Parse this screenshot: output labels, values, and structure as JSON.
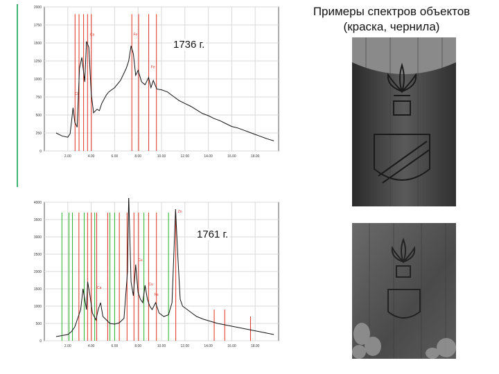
{
  "title_line1": "Примеры спектров объектов",
  "title_line2": "(краска, чернила)",
  "chart_data": [
    {
      "type": "line",
      "label": "1736 г.",
      "xlim": [
        0,
        20
      ],
      "ylim": [
        0,
        2000
      ],
      "x_tick_labels": [
        "2.00",
        "4.00",
        "6.00",
        "8.00",
        "10.00",
        "12.00",
        "14.00",
        "16.00",
        "18.00"
      ],
      "y_tick_labels": [
        "2000",
        "1750",
        "1500",
        "1250",
        "1000",
        "750",
        "500",
        "250",
        "0"
      ],
      "x": [
        1.0,
        1.5,
        2.0,
        2.2,
        2.45,
        2.6,
        2.8,
        3.0,
        3.2,
        3.45,
        3.6,
        3.8,
        4.0,
        4.2,
        4.5,
        4.7,
        4.9,
        5.1,
        5.3,
        5.5,
        6.0,
        6.5,
        7.0,
        7.2,
        7.4,
        7.6,
        7.8,
        8.0,
        8.3,
        8.6,
        8.9,
        9.1,
        9.3,
        9.6,
        10.0,
        10.5,
        11.0,
        11.5,
        12.0,
        12.5,
        13.0,
        13.5,
        14.0,
        14.5,
        15.0,
        15.5,
        16.0,
        16.5,
        17.0,
        17.5,
        18.0,
        18.5,
        19.0,
        19.6
      ],
      "y": [
        250,
        210,
        190,
        240,
        600,
        400,
        330,
        1150,
        1300,
        960,
        1520,
        1440,
        800,
        530,
        580,
        560,
        660,
        720,
        780,
        820,
        880,
        980,
        1150,
        1250,
        1460,
        1350,
        1050,
        1120,
        960,
        920,
        1020,
        880,
        980,
        860,
        850,
        820,
        760,
        700,
        660,
        620,
        570,
        520,
        490,
        450,
        420,
        380,
        340,
        320,
        290,
        260,
        230,
        200,
        170,
        140
      ],
      "peak_labels": [
        {
          "text": "Ca",
          "x": 3.9,
          "y": 1600
        },
        {
          "text": "Fe",
          "x": 7.6,
          "y": 1600
        },
        {
          "text": "Fe",
          "x": 9.1,
          "y": 1150
        },
        {
          "text": "Cl",
          "x": 2.6,
          "y": 780
        }
      ],
      "red_lines": [
        2.62,
        2.96,
        3.35,
        3.69,
        4.01,
        7.47,
        8.05,
        8.91,
        9.57
      ],
      "red_line_heights": [
        1900,
        1900,
        1900,
        1900,
        1900,
        1900,
        1900,
        1900,
        1900
      ]
    },
    {
      "type": "line",
      "label": "1761 г.",
      "xlim": [
        0,
        20
      ],
      "ylim": [
        0,
        4000
      ],
      "x_tick_labels": [
        "2.00",
        "4.00",
        "6.00",
        "8.00",
        "10.00",
        "12.00",
        "14.00",
        "16.00",
        "18.00"
      ],
      "y_tick_labels": [
        "4000",
        "3500",
        "3000",
        "2500",
        "2000",
        "1500",
        "1000",
        "500",
        "0"
      ],
      "x": [
        1.0,
        1.5,
        2.0,
        2.3,
        2.6,
        2.9,
        3.1,
        3.3,
        3.6,
        3.7,
        3.9,
        4.1,
        4.4,
        4.6,
        4.8,
        5.0,
        5.3,
        5.6,
        6.0,
        6.4,
        6.8,
        7.1,
        7.2,
        7.4,
        7.6,
        7.8,
        8.0,
        8.2,
        8.4,
        8.6,
        8.8,
        9.0,
        9.2,
        9.5,
        9.8,
        10.2,
        10.6,
        10.9,
        11.2,
        11.4,
        11.6,
        11.8,
        12.2,
        12.6,
        13.0,
        13.6,
        14.2,
        14.8,
        15.4,
        16.0,
        16.6,
        17.2,
        17.8,
        18.4,
        19.0,
        19.6
      ],
      "y": [
        120,
        150,
        180,
        260,
        400,
        700,
        900,
        1500,
        900,
        1700,
        1300,
        800,
        600,
        900,
        1100,
        700,
        600,
        500,
        480,
        520,
        650,
        2000,
        4200,
        1700,
        1300,
        2200,
        1400,
        1200,
        1100,
        1600,
        1200,
        1000,
        900,
        1100,
        800,
        700,
        750,
        1100,
        3800,
        2400,
        1200,
        1000,
        900,
        800,
        700,
        620,
        560,
        500,
        460,
        420,
        380,
        340,
        300,
        260,
        220,
        180
      ],
      "peak_labels": [
        {
          "text": "Fe",
          "x": 7.2,
          "y": 4300
        },
        {
          "text": "Ca",
          "x": 4.5,
          "y": 1500
        },
        {
          "text": "Zn",
          "x": 11.4,
          "y": 3700
        },
        {
          "text": "Cu",
          "x": 8.0,
          "y": 2300
        },
        {
          "text": "Cu",
          "x": 8.9,
          "y": 1600
        },
        {
          "text": "Fe",
          "x": 9.4,
          "y": 1300
        }
      ],
      "red_lines": [
        2.95,
        3.69,
        4.01,
        4.47,
        5.41,
        6.4,
        7.06,
        7.65,
        8.04,
        8.9,
        9.57,
        11.22,
        14.5,
        15.4,
        17.6
      ],
      "red_line_heights": [
        3700,
        3700,
        3700,
        3700,
        3700,
        3700,
        3700,
        3700,
        3700,
        3700,
        3700,
        3700,
        900,
        900,
        700
      ],
      "green_lines": [
        1.5,
        2.1,
        2.4,
        3.4,
        4.3,
        5.6,
        6.0,
        8.5,
        10.6
      ],
      "green_line_heights": [
        3700,
        3700,
        3700,
        3700,
        3700,
        3700,
        3700,
        3700,
        3700
      ]
    }
  ]
}
